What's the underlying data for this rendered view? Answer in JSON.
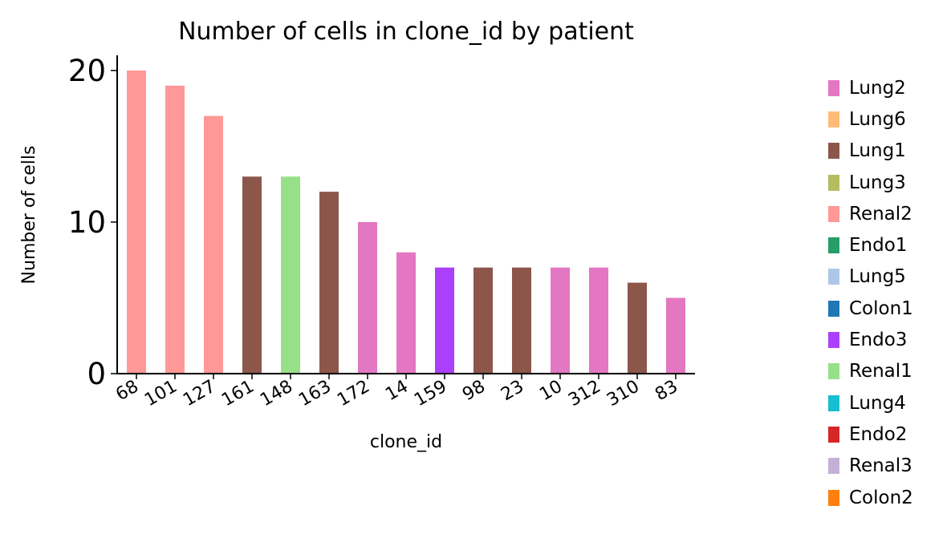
{
  "chart_data": {
    "type": "bar",
    "title": "Number of cells in clone_id by patient",
    "xlabel": "clone_id",
    "ylabel": "Number of cells",
    "ylim": [
      0,
      21
    ],
    "yticks": [
      "0",
      "10",
      "20"
    ],
    "grid": false,
    "legend_position": "right",
    "categories": [
      "68",
      "101",
      "127",
      "161",
      "148",
      "163",
      "172",
      "14",
      "159",
      "98",
      "23",
      "10",
      "312",
      "310",
      "83"
    ],
    "values": [
      20,
      19,
      17,
      13,
      13,
      12,
      10,
      8,
      7,
      7,
      7,
      7,
      7,
      6,
      5
    ],
    "bar_patients": [
      "Renal2",
      "Renal2",
      "Renal2",
      "Lung1",
      "Renal1",
      "Lung1",
      "Lung2",
      "Lung2",
      "Endo3",
      "Lung1",
      "Lung1",
      "Lung2",
      "Lung2",
      "Lung1",
      "Lung2"
    ],
    "legend": [
      {
        "label": "Lung2",
        "color": "#e377c2"
      },
      {
        "label": "Lung6",
        "color": "#ffbb78"
      },
      {
        "label": "Lung1",
        "color": "#8c564b"
      },
      {
        "label": "Lung3",
        "color": "#b5bd61"
      },
      {
        "label": "Renal2",
        "color": "#ff9896"
      },
      {
        "label": "Endo1",
        "color": "#279e68"
      },
      {
        "label": "Lung5",
        "color": "#aec7e8"
      },
      {
        "label": "Colon1",
        "color": "#1f77b4"
      },
      {
        "label": "Endo3",
        "color": "#aa40fc"
      },
      {
        "label": "Renal1",
        "color": "#98df8a"
      },
      {
        "label": "Lung4",
        "color": "#17becf"
      },
      {
        "label": "Endo2",
        "color": "#d62728"
      },
      {
        "label": "Renal3",
        "color": "#c5b0d5"
      },
      {
        "label": "Colon2",
        "color": "#ff7f0e"
      }
    ]
  }
}
